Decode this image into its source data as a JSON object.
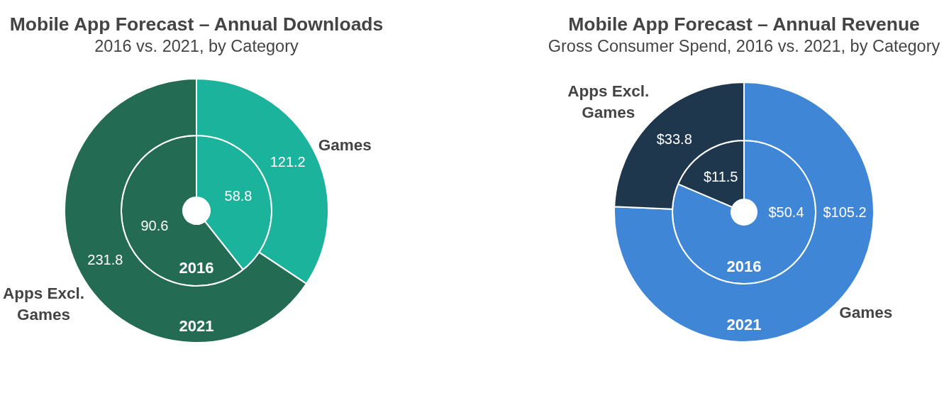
{
  "chart_data": [
    {
      "type": "donut",
      "title": "Mobile App Forecast – Annual Downloads",
      "subtitle": "2016 vs. 2021, by Category",
      "categories": [
        "Games",
        "Apps Excl. Games"
      ],
      "colors": [
        "#1bb39b",
        "#236b53"
      ],
      "series": [
        {
          "name": "2016",
          "values": [
            58.8,
            90.6
          ]
        },
        {
          "name": "2021",
          "values": [
            121.2,
            231.8
          ]
        }
      ],
      "data_labels": true
    },
    {
      "type": "donut",
      "title": "Mobile App Forecast – Annual Revenue",
      "subtitle": "Gross Consumer Spend, 2016 vs. 2021, by Category",
      "categories": [
        "Games",
        "Apps Excl. Games"
      ],
      "colors": [
        "#3f87d6",
        "#1f374d"
      ],
      "series": [
        {
          "name": "2016",
          "values": [
            50.4,
            11.5
          ],
          "value_labels": [
            "$50.4",
            "$11.5"
          ]
        },
        {
          "name": "2021",
          "values": [
            105.2,
            33.8
          ],
          "value_labels": [
            "$105.2",
            "$33.8"
          ]
        }
      ]
    }
  ]
}
